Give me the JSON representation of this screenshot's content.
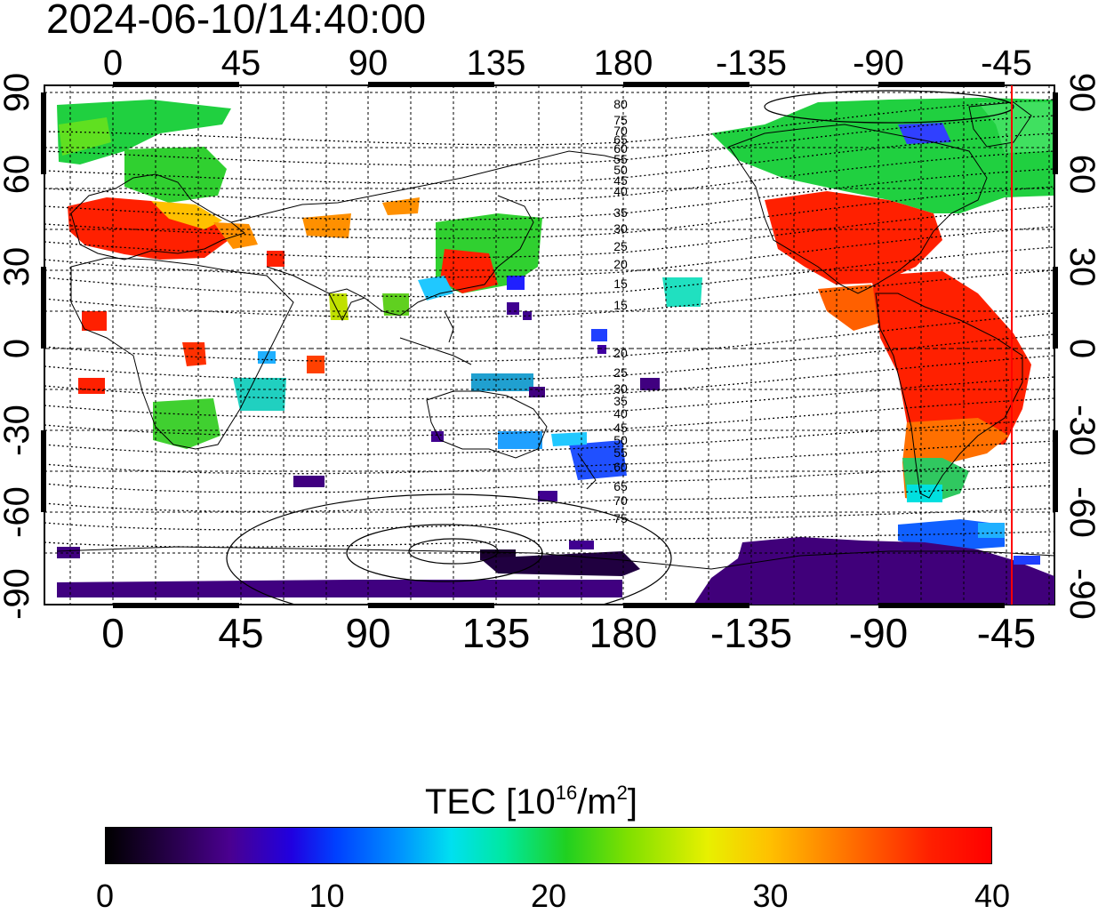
{
  "timestamp": "2024-06-10/14:40:00",
  "map": {
    "top_lon_ticks": [
      "0",
      "45",
      "90",
      "135",
      "180",
      "-135",
      "-90",
      "-45"
    ],
    "bottom_lon_ticks": [
      "0",
      "45",
      "90",
      "135",
      "180",
      "-135",
      "-90",
      "-45"
    ],
    "left_lat_ticks": [
      "90",
      "60",
      "30",
      "0",
      "-30",
      "-60",
      "-90"
    ],
    "right_lat_ticks": [
      "90",
      "60",
      "30",
      "0",
      "-30",
      "-60",
      "-90"
    ],
    "contour_labels": [
      "80",
      "75",
      "70",
      "65",
      "60",
      "55",
      "50",
      "45",
      "40",
      "35",
      "30",
      "25",
      "20",
      "15",
      "15",
      "20",
      "25",
      "30",
      "35",
      "40",
      "45",
      "50",
      "55",
      "60",
      "65",
      "70",
      "75"
    ],
    "terminator_color": "#ff0000"
  },
  "colorbar": {
    "title_prefix": "TEC  [10",
    "title_exp1": "16",
    "title_mid": "/m",
    "title_exp2": "2",
    "title_suffix": "]",
    "ticks": [
      "0",
      "10",
      "20",
      "30",
      "40"
    ],
    "min": 0,
    "max": 40
  }
}
